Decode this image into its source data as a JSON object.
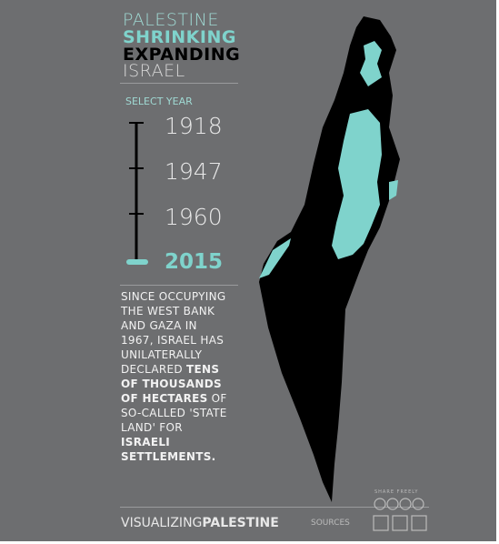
{
  "header": {
    "title_lines": [
      "PALESTINE",
      "SHRINKING",
      "EXPANDING",
      "ISRAEL"
    ]
  },
  "year_selector": {
    "label": "SELECT YEAR",
    "years": [
      "1918",
      "1947",
      "1960",
      "2015"
    ]
  },
  "description": [
    "SINCE OCCUPYING THE WEST BANK AND GAZA IN 1967, ISRAEL HAS UNILATERALLY DECLARED ",
    "TENS OF THOUSANDS OF HECTARES",
    " OF SO-CALLED 'STATE LAND' FOR ",
    "ISRAELI SETTLEMENTS."
  ],
  "footer": {
    "brand_light": "VISUALIZING",
    "brand_bold": "PALESTINE",
    "sources": "SOURCES",
    "share": "SHARE FREELY"
  }
}
